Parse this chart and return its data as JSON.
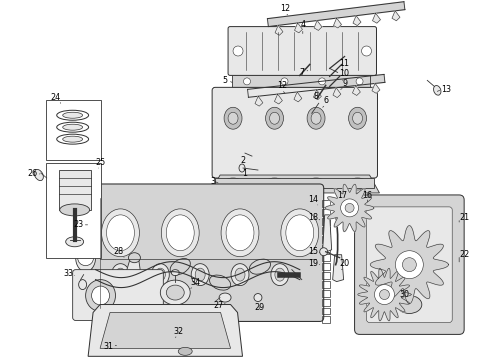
{
  "bg_color": "#ffffff",
  "line_color": "#333333",
  "label_color": "#000000",
  "fig_width": 4.9,
  "fig_height": 3.6,
  "dpi": 100,
  "lw": 0.6,
  "face_light": "#e8e8e8",
  "face_mid": "#d4d4d4",
  "face_dark": "#c0c0c0"
}
